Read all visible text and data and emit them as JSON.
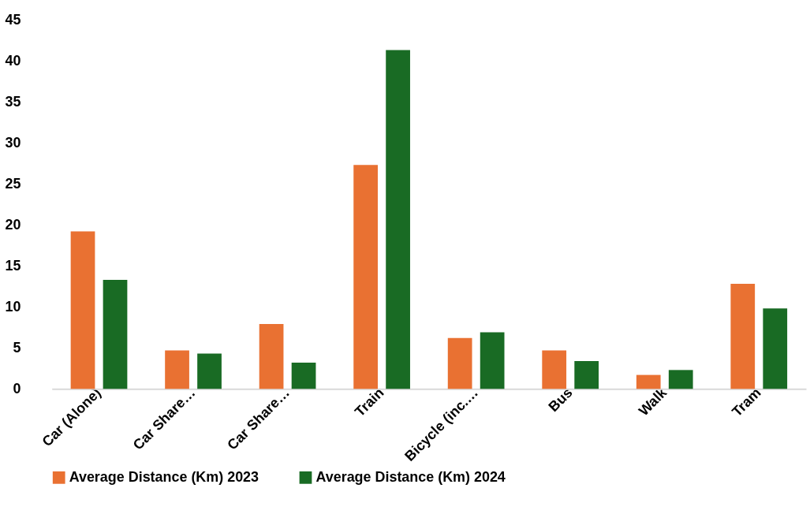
{
  "chart_data": {
    "type": "bar",
    "categories": [
      "Car (Alone)",
      "Car Share…",
      "Car Share…",
      "Train",
      "Bicycle (inc.…",
      "Bus",
      "Walk",
      "Tram"
    ],
    "series": [
      {
        "name": "Average Distance (Km) 2023",
        "color": "#e97132",
        "values": [
          19.2,
          4.7,
          7.9,
          27.3,
          6.2,
          4.7,
          1.7,
          12.8
        ]
      },
      {
        "name": "Average Distance (Km) 2024",
        "color": "#196b24",
        "values": [
          13.3,
          4.3,
          3.2,
          41.3,
          6.9,
          3.4,
          2.3,
          9.8
        ]
      }
    ],
    "ylim": [
      0,
      45
    ],
    "yticks": [
      0,
      5,
      10,
      15,
      20,
      25,
      30,
      35,
      40,
      45
    ],
    "grid": false,
    "legend": "bottom"
  }
}
